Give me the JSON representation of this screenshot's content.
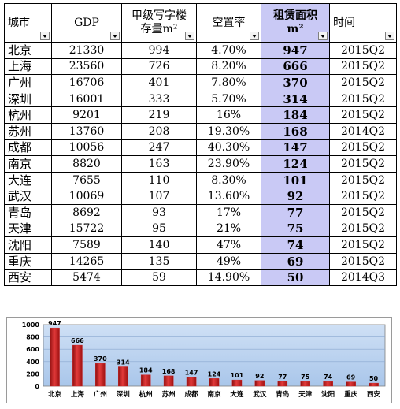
{
  "table": {
    "headers": {
      "city": "城市",
      "gdp": "GDP",
      "grade_a_line1": "甲级写字楼",
      "grade_a_line2": "存量m²",
      "vacancy": "空置率",
      "rent_line1": "租赁面积",
      "rent_line2": "m²",
      "time": "时间"
    },
    "rows": [
      {
        "city": "北京",
        "gdp": "21330",
        "stock": "994",
        "vacancy": "4.70%",
        "rent": "947",
        "time": "2015Q2"
      },
      {
        "city": "上海",
        "gdp": "23560",
        "stock": "726",
        "vacancy": "8.20%",
        "rent": "666",
        "time": "2015Q2"
      },
      {
        "city": "广州",
        "gdp": "16706",
        "stock": "401",
        "vacancy": "7.80%",
        "rent": "370",
        "time": "2015Q2"
      },
      {
        "city": "深圳",
        "gdp": "16001",
        "stock": "333",
        "vacancy": "5.70%",
        "rent": "314",
        "time": "2015Q2"
      },
      {
        "city": "杭州",
        "gdp": "9201",
        "stock": "219",
        "vacancy": "16%",
        "rent": "184",
        "time": "2015Q2"
      },
      {
        "city": "苏州",
        "gdp": "13760",
        "stock": "208",
        "vacancy": "19.30%",
        "rent": "168",
        "time": "2014Q2"
      },
      {
        "city": "成都",
        "gdp": "10056",
        "stock": "247",
        "vacancy": "40.30%",
        "rent": "147",
        "time": "2015Q2"
      },
      {
        "city": "南京",
        "gdp": "8820",
        "stock": "163",
        "vacancy": "23.90%",
        "rent": "124",
        "time": "2015Q2"
      },
      {
        "city": "大连",
        "gdp": "7655",
        "stock": "110",
        "vacancy": "8.30%",
        "rent": "101",
        "time": "2015Q2"
      },
      {
        "city": "武汉",
        "gdp": "10069",
        "stock": "107",
        "vacancy": "13.60%",
        "rent": "92",
        "time": "2015Q2"
      },
      {
        "city": "青岛",
        "gdp": "8692",
        "stock": "93",
        "vacancy": "17%",
        "rent": "77",
        "time": "2015Q2"
      },
      {
        "city": "天津",
        "gdp": "15722",
        "stock": "95",
        "vacancy": "21%",
        "rent": "75",
        "time": "2015Q2"
      },
      {
        "city": "沈阳",
        "gdp": "7589",
        "stock": "140",
        "vacancy": "47%",
        "rent": "74",
        "time": "2015Q2"
      },
      {
        "city": "重庆",
        "gdp": "14265",
        "stock": "135",
        "vacancy": "49%",
        "rent": "69",
        "time": "2015Q2"
      },
      {
        "city": "西安",
        "gdp": "5474",
        "stock": "59",
        "vacancy": "14.90%",
        "rent": "50",
        "time": "2014Q3"
      }
    ]
  },
  "colors": {
    "rent_highlight": "#c9c9f5",
    "bar": "#cc1f1f",
    "plot_bg_top": "#cfe0f5",
    "plot_bg_bottom": "#a9c6ea"
  },
  "icons": {
    "filter_dropdown": "chevron-down-icon"
  },
  "chart_data": {
    "type": "bar",
    "categories": [
      "北京",
      "上海",
      "广州",
      "深圳",
      "杭州",
      "苏州",
      "成都",
      "南京",
      "大连",
      "武汉",
      "青岛",
      "天津",
      "沈阳",
      "重庆",
      "西安"
    ],
    "values": [
      947,
      666,
      370,
      314,
      184,
      168,
      147,
      124,
      101,
      92,
      77,
      75,
      74,
      69,
      50
    ],
    "y_ticks": [
      "0",
      "200",
      "400",
      "600",
      "800",
      "1000"
    ],
    "ylim": [
      0,
      1000
    ],
    "title": "",
    "xlabel": "",
    "ylabel": "",
    "grid": true,
    "legend": "none",
    "data_labels": true
  }
}
